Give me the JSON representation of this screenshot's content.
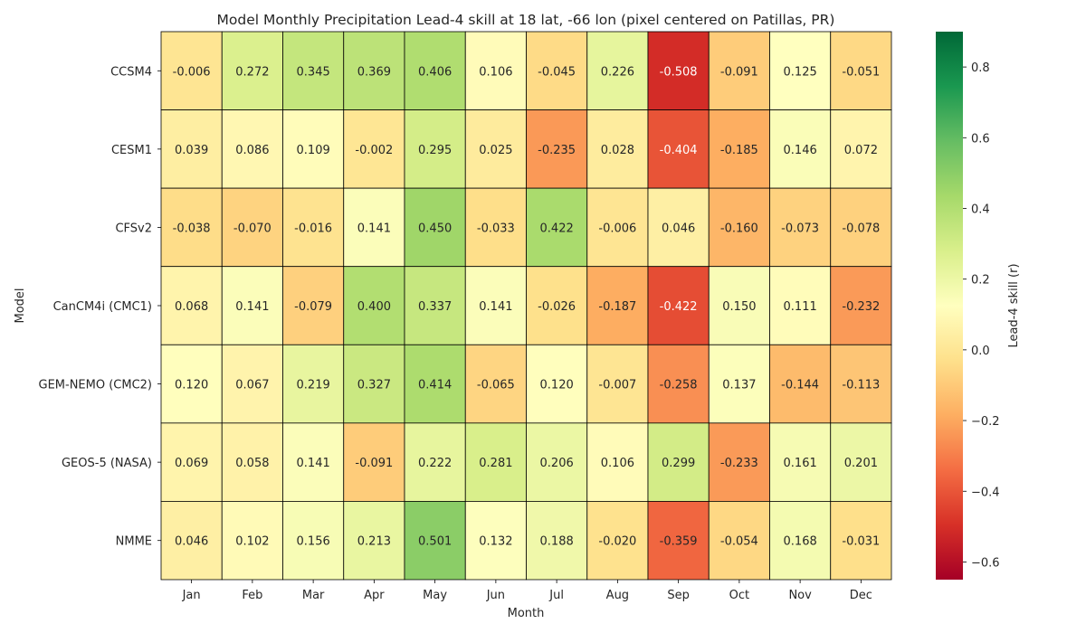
{
  "chart_data": {
    "type": "heatmap",
    "title": "Model Monthly Precipitation Lead-4 skill at 18 lat, -66 lon (pixel centered on Patillas, PR)",
    "xlabel": "Month",
    "ylabel": "Model",
    "colorbar_label": "Lead-4 skill (r)",
    "colormap": "RdYlGn",
    "vmin": -0.65,
    "vmax": 0.9,
    "colorbar_ticks": [
      "0.8",
      "0.6",
      "0.4",
      "0.2",
      "0.0",
      "−0.2",
      "−0.4",
      "−0.6"
    ],
    "colorbar_tick_values": [
      0.8,
      0.6,
      0.4,
      0.2,
      0.0,
      -0.2,
      -0.4,
      -0.6
    ],
    "months": [
      "Jan",
      "Feb",
      "Mar",
      "Apr",
      "May",
      "Jun",
      "Jul",
      "Aug",
      "Sep",
      "Oct",
      "Nov",
      "Dec"
    ],
    "models": [
      "CCSM4",
      "CESM1",
      "CFSv2",
      "CanCM4i (CMC1)",
      "GEM-NEMO (CMC2)",
      "GEOS-5 (NASA)",
      "NMME"
    ],
    "values": [
      [
        -0.006,
        0.272,
        0.345,
        0.369,
        0.406,
        0.106,
        -0.045,
        0.226,
        -0.508,
        -0.091,
        0.125,
        -0.051
      ],
      [
        0.039,
        0.086,
        0.109,
        -0.002,
        0.295,
        0.025,
        -0.235,
        0.028,
        -0.404,
        -0.185,
        0.146,
        0.072
      ],
      [
        -0.038,
        -0.07,
        -0.016,
        0.141,
        0.45,
        -0.033,
        0.422,
        -0.006,
        0.046,
        -0.16,
        -0.073,
        -0.078
      ],
      [
        0.068,
        0.141,
        -0.079,
        0.4,
        0.337,
        0.141,
        -0.026,
        -0.187,
        -0.422,
        0.15,
        0.111,
        -0.232
      ],
      [
        0.12,
        0.067,
        0.219,
        0.327,
        0.414,
        -0.065,
        0.12,
        -0.007,
        -0.258,
        0.137,
        -0.144,
        -0.113
      ],
      [
        0.069,
        0.058,
        0.141,
        -0.091,
        0.222,
        0.281,
        0.206,
        0.106,
        0.299,
        -0.233,
        0.161,
        0.201
      ],
      [
        0.046,
        0.102,
        0.156,
        0.213,
        0.501,
        0.132,
        0.188,
        -0.02,
        -0.359,
        -0.054,
        0.168,
        -0.031
      ]
    ],
    "labels": [
      [
        "-0.006",
        "0.272",
        "0.345",
        "0.369",
        "0.406",
        "0.106",
        "-0.045",
        "0.226",
        "-0.508",
        "-0.091",
        "0.125",
        "-0.051"
      ],
      [
        "0.039",
        "0.086",
        "0.109",
        "-0.002",
        "0.295",
        "0.025",
        "-0.235",
        "0.028",
        "-0.404",
        "-0.185",
        "0.146",
        "0.072"
      ],
      [
        "-0.038",
        "-0.070",
        "-0.016",
        "0.141",
        "0.450",
        "-0.033",
        "0.422",
        "-0.006",
        "0.046",
        "-0.160",
        "-0.073",
        "-0.078"
      ],
      [
        "0.068",
        "0.141",
        "-0.079",
        "0.400",
        "0.337",
        "0.141",
        "-0.026",
        "-0.187",
        "-0.422",
        "0.150",
        "0.111",
        "-0.232"
      ],
      [
        "0.120",
        "0.067",
        "0.219",
        "0.327",
        "0.414",
        "-0.065",
        "0.120",
        "-0.007",
        "-0.258",
        "0.137",
        "-0.144",
        "-0.113"
      ],
      [
        "0.069",
        "0.058",
        "0.141",
        "-0.091",
        "0.222",
        "0.281",
        "0.206",
        "0.106",
        "0.299",
        "-0.233",
        "0.161",
        "0.201"
      ],
      [
        "0.046",
        "0.102",
        "0.156",
        "0.213",
        "0.501",
        "0.132",
        "0.188",
        "-0.020",
        "-0.359",
        "-0.054",
        "0.168",
        "-0.031"
      ]
    ]
  }
}
